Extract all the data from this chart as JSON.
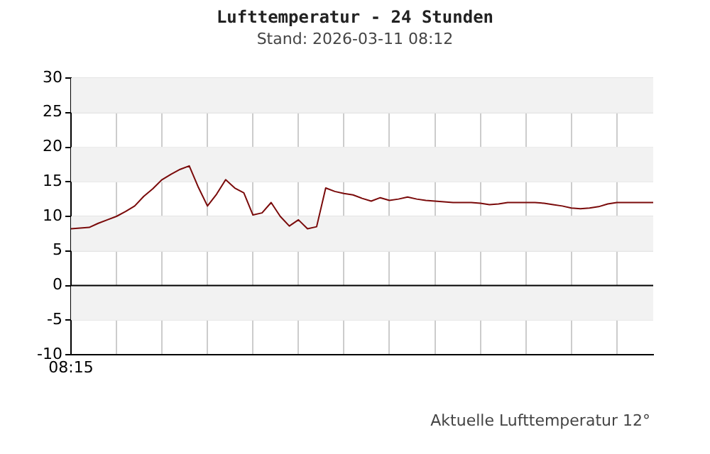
{
  "chart_data": {
    "type": "line",
    "title": "Lufttemperatur - 24 Stunden",
    "subtitle": "Stand: 2026-03-11 08:12",
    "annotations": [
      "Aktuelle Lufttemperatur 12°"
    ],
    "categories": [
      "08:15",
      null,
      null,
      null,
      null,
      null,
      null,
      null,
      null,
      null,
      null,
      null,
      null,
      null,
      null,
      null,
      null,
      null,
      null,
      null,
      null,
      null,
      null,
      null,
      null,
      null,
      null,
      null,
      null,
      null,
      null,
      null,
      null,
      null,
      null,
      null,
      null,
      null,
      null,
      null,
      null,
      null,
      null,
      null,
      null,
      null,
      null,
      null,
      null,
      null,
      null,
      null,
      null,
      null,
      null,
      null,
      null,
      null,
      null,
      null,
      null,
      null,
      null,
      null,
      null
    ],
    "ylim": [
      -10,
      30
    ],
    "yticks": [
      -10,
      -5,
      0,
      5,
      10,
      15,
      20,
      25,
      30
    ],
    "grid": true,
    "legend": false,
    "marker": "none",
    "line_style": "solid",
    "ref_lines": [
      {
        "axis": "y",
        "value": 0,
        "color": "#000000"
      }
    ],
    "series": [
      {
        "color": "#7a0a0a",
        "values": [
          8.2,
          8.3,
          8.4,
          9.0,
          9.5,
          10.0,
          10.7,
          11.5,
          12.9,
          14.0,
          15.3,
          16.1,
          16.8,
          17.3,
          14.2,
          11.5,
          13.2,
          15.3,
          14.1,
          13.4,
          10.2,
          10.5,
          12.0,
          10.0,
          8.6,
          9.5,
          8.2,
          8.5,
          14.1,
          13.6,
          13.3,
          13.1,
          12.6,
          12.2,
          12.7,
          12.3,
          12.5,
          12.8,
          12.5,
          12.3,
          12.2,
          12.1,
          12.0,
          12.0,
          12.0,
          11.9,
          11.7,
          11.8,
          12.0,
          12.0,
          12.0,
          12.0,
          11.9,
          11.7,
          11.5,
          11.2,
          11.1,
          11.2,
          11.4,
          11.8,
          12.0,
          12.0,
          12.0,
          12.0,
          12.0
        ]
      }
    ]
  }
}
